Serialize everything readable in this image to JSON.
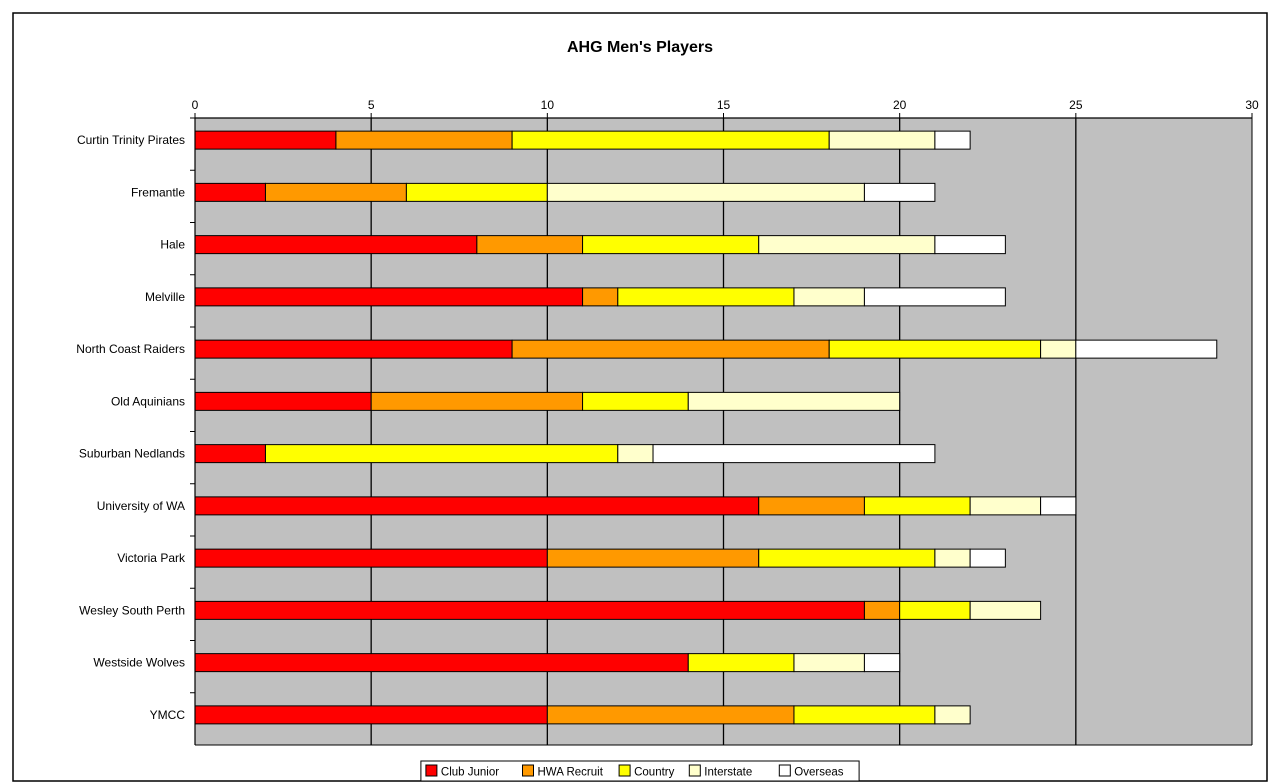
{
  "chart_data": {
    "type": "bar",
    "orientation": "horizontal",
    "stacked": true,
    "title": "AHG Men's Players",
    "xlabel": "",
    "ylabel": "",
    "xlim": [
      0,
      30
    ],
    "x_ticks": [
      "0",
      "5",
      "10",
      "15",
      "20",
      "25",
      "30"
    ],
    "grid": "vertical major gridlines",
    "legend": "bottom-center",
    "categories": [
      "Curtin Trinity Pirates",
      "Fremantle",
      "Hale",
      "Melville",
      "North Coast Raiders",
      "Old Aquinians",
      "Suburban Nedlands",
      "University of WA",
      "Victoria Park",
      "Wesley South Perth",
      "Westside Wolves",
      "YMCC"
    ],
    "series": [
      {
        "name": "Club Junior",
        "color": "#ff0000",
        "values": [
          4,
          2,
          8,
          11,
          9,
          5,
          2,
          16,
          10,
          19,
          14,
          10
        ]
      },
      {
        "name": "HWA Recruit",
        "color": "#ff9900",
        "values": [
          5,
          4,
          3,
          1,
          9,
          6,
          0,
          3,
          6,
          1,
          0,
          7
        ]
      },
      {
        "name": "Country",
        "color": "#ffff00",
        "values": [
          9,
          4,
          5,
          5,
          6,
          3,
          10,
          3,
          5,
          2,
          3,
          4
        ]
      },
      {
        "name": "Interstate",
        "color": "#ffffcc",
        "values": [
          3,
          9,
          5,
          2,
          1,
          6,
          1,
          2,
          1,
          2,
          2,
          1
        ]
      },
      {
        "name": "Overseas",
        "color": "#ffffff",
        "values": [
          1,
          2,
          2,
          4,
          4,
          0,
          8,
          1,
          1,
          0,
          1,
          0
        ]
      }
    ],
    "plot_background": "#c0c0c0"
  }
}
